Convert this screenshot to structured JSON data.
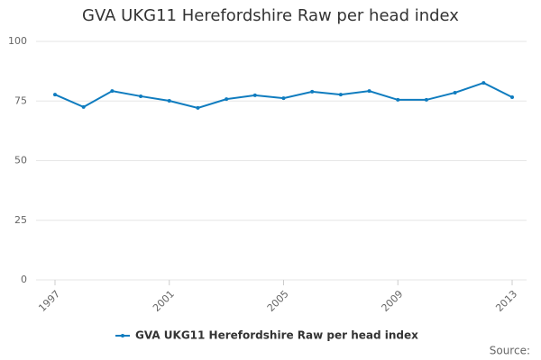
{
  "chart_data": {
    "type": "line",
    "title": "GVA UKG11 Herefordshire Raw per head index",
    "x": [
      1997,
      1998,
      1999,
      2000,
      2001,
      2002,
      2003,
      2004,
      2005,
      2006,
      2007,
      2008,
      2009,
      2010,
      2011,
      2012,
      2013
    ],
    "series": [
      {
        "name": "GVA UKG11 Herefordshire Raw per head index",
        "color": "#0f7cbf",
        "values": [
          77.7,
          72.5,
          79.2,
          77.0,
          75.1,
          72.1,
          75.8,
          77.4,
          76.2,
          78.9,
          77.7,
          79.2,
          75.5,
          75.5,
          78.5,
          82.6,
          76.6
        ]
      }
    ],
    "xlim": [
      1997,
      2013
    ],
    "xticks": [
      1997,
      2001,
      2005,
      2009,
      2013
    ],
    "ylim": [
      0,
      100
    ],
    "yticks": [
      0,
      25,
      50,
      75,
      100
    ],
    "grid": true,
    "legend": "bottom",
    "source": "Source:"
  }
}
